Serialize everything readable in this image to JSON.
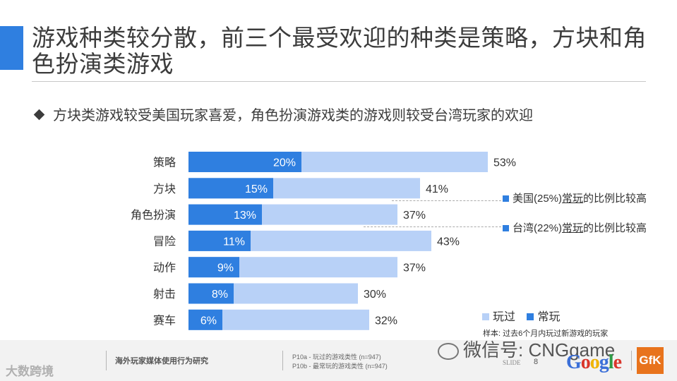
{
  "title": "游戏种类较分散，前三个最受欢迎的种类是策略，方块和角色扮演类游戏",
  "subtitle": "方块类游戏较受美国玩家喜爱，角色扮演游戏类的游戏则较受台湾玩家的欢迎",
  "colors": {
    "accent": "#2f7fe0",
    "played": "#b8d1f7",
    "frequent": "#2f7fe0"
  },
  "chart_data": {
    "type": "bar",
    "orientation": "horizontal",
    "categories": [
      "策略",
      "方块",
      "角色扮演",
      "冒险",
      "动作",
      "射击",
      "赛车"
    ],
    "series": [
      {
        "name": "玩过",
        "values": [
          53,
          41,
          37,
          43,
          37,
          30,
          32
        ]
      },
      {
        "name": "常玩",
        "values": [
          20,
          15,
          13,
          11,
          9,
          8,
          6
        ]
      }
    ],
    "value_suffix": "%",
    "legend_position": "bottom-right"
  },
  "callouts": [
    {
      "prefix": "美国(25%)",
      "underlined": "常玩",
      "suffix": "的比例比较高"
    },
    {
      "prefix": "台湾(22%)",
      "underlined": "常玩",
      "suffix": "的比例比较高"
    }
  ],
  "legend": {
    "played": "玩过",
    "frequent": "常玩"
  },
  "sample_note": "样本: 过去6个月内玩过新游戏的玩家",
  "footer": {
    "logo": "大数跨境",
    "report": "海外玩家媒体使用行为研究",
    "q1": "P10a - 玩过的游戏类性 (n=947)",
    "q2": "P10b - 最常玩的游戏类性 (n=947)",
    "wechat": "微信号: CNGgame",
    "slide_label": "SLIDE",
    "slide_number": "8",
    "google": "Google",
    "gfk": "GfK"
  }
}
